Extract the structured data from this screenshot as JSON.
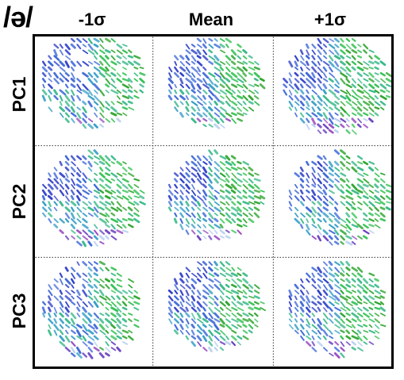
{
  "title": "/ə/",
  "columns": [
    "-1σ",
    "Mean",
    "+1σ"
  ],
  "rows": [
    "PC1",
    "PC2",
    "PC3"
  ],
  "colors": {
    "frame": "#000000",
    "divider": "#333333",
    "arrow_palette": [
      "#2f3fc8",
      "#3f6ad8",
      "#3aa0c8",
      "#39b98a",
      "#33c153",
      "#2fa52f",
      "#6a3fbf",
      "#9a4fc0",
      "#b8d0f0"
    ]
  },
  "panels": [
    {
      "row": "PC1",
      "column": "-1σ",
      "content": "arrow-field"
    },
    {
      "row": "PC1",
      "column": "Mean",
      "content": "arrow-field"
    },
    {
      "row": "PC1",
      "column": "+1σ",
      "content": "arrow-field"
    },
    {
      "row": "PC2",
      "column": "-1σ",
      "content": "arrow-field"
    },
    {
      "row": "PC2",
      "column": "Mean",
      "content": "arrow-field"
    },
    {
      "row": "PC2",
      "column": "+1σ",
      "content": "arrow-field"
    },
    {
      "row": "PC3",
      "column": "-1σ",
      "content": "arrow-field"
    },
    {
      "row": "PC3",
      "column": "Mean",
      "content": "arrow-field"
    },
    {
      "row": "PC3",
      "column": "+1σ",
      "content": "arrow-field"
    }
  ]
}
